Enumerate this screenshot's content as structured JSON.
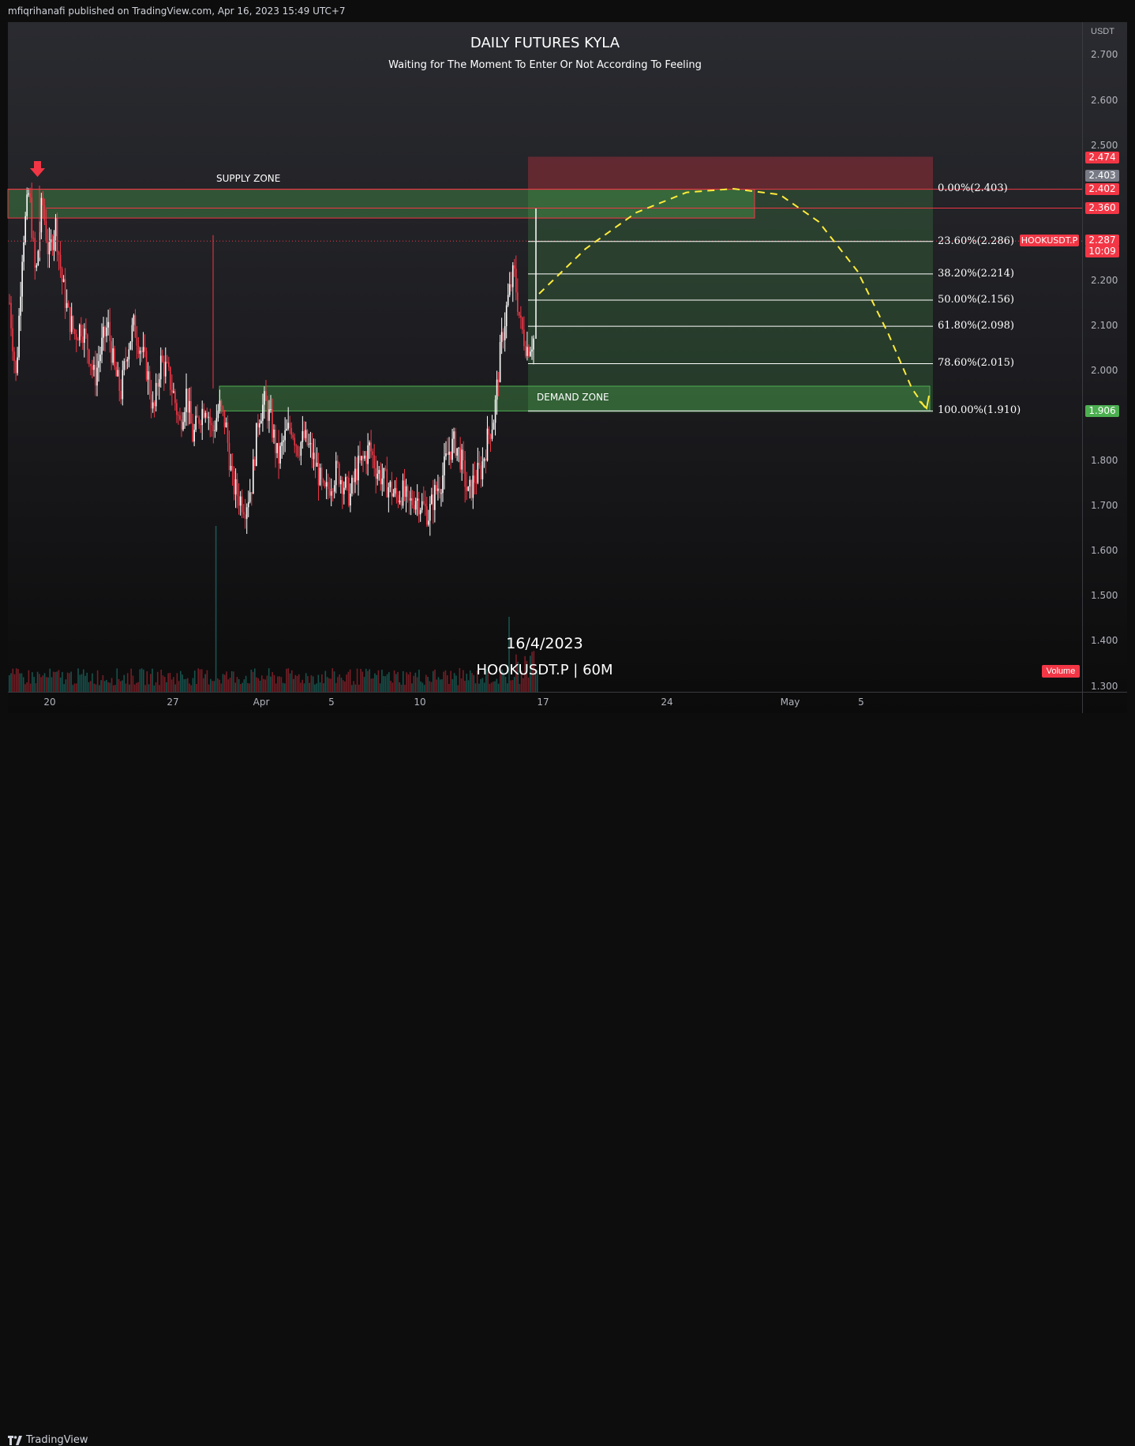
{
  "header": {
    "published": "mfiqrihanafi published on TradingView.com, Apr 16, 2023 15:49 UTC+7"
  },
  "footer": {
    "brand": "TradingView"
  },
  "chart": {
    "title": "DAILY FUTURES KYLA",
    "subtitle": "Waiting for The Moment To Enter Or Not According To Feeling",
    "watermark_date": "16/4/2023",
    "watermark_symbol": "HOOKUSDT.P | 60M",
    "supply_label": "SUPPLY ZONE",
    "demand_label": "DEMAND ZONE",
    "currency": "USDT",
    "symbol_tag": "HOOKUSDT.P",
    "volume_tag": "Volume",
    "countdown": "10:09",
    "colors": {
      "bull": "#ffffff",
      "bear": "#f23645",
      "zone_green": "#4caf50",
      "zone_red": "#f23645",
      "forecast": "#ffeb3b"
    }
  },
  "chart_data": {
    "type": "candlestick",
    "symbol": "HOOKUSDT.P",
    "interval": "60M",
    "y_range": [
      1.28,
      2.74
    ],
    "y_ticks": [
      {
        "v": 2.7,
        "label": "2.700"
      },
      {
        "v": 2.6,
        "label": "2.600"
      },
      {
        "v": 2.5,
        "label": "2.500"
      },
      {
        "v": 2.2,
        "label": "2.200"
      },
      {
        "v": 2.1,
        "label": "2.100"
      },
      {
        "v": 2.0,
        "label": "2.000"
      },
      {
        "v": 1.8,
        "label": "1.800"
      },
      {
        "v": 1.7,
        "label": "1.700"
      },
      {
        "v": 1.6,
        "label": "1.600"
      },
      {
        "v": 1.5,
        "label": "1.500"
      },
      {
        "v": 1.4,
        "label": "1.400"
      },
      {
        "v": 1.3,
        "label": "1.300"
      }
    ],
    "x_ticks": [
      "20",
      "27",
      "Apr",
      "5",
      "10",
      "17",
      "24",
      "May",
      "5"
    ],
    "price_tags": [
      {
        "v": 2.474,
        "label": "2.474",
        "color": "#f23645"
      },
      {
        "v": 2.403,
        "label": "2.403",
        "color": "#787b86"
      },
      {
        "v": 2.402,
        "label": "2.402",
        "color": "#f23645"
      },
      {
        "v": 2.36,
        "label": "2.360",
        "color": "#f23645"
      },
      {
        "v": 2.287,
        "label": "2.287",
        "color": "#f23645"
      },
      {
        "v": 1.906,
        "label": "1.906",
        "color": "#4caf50"
      }
    ],
    "fib_levels": [
      {
        "v": 2.403,
        "label": "0.00%(2.403)"
      },
      {
        "v": 2.286,
        "label": "23.60%(2.286)"
      },
      {
        "v": 2.214,
        "label": "38.20%(2.214)"
      },
      {
        "v": 2.156,
        "label": "50.00%(2.156)"
      },
      {
        "v": 2.098,
        "label": "61.80%(2.098)"
      },
      {
        "v": 2.015,
        "label": "78.60%(2.015)"
      },
      {
        "v": 1.91,
        "label": "100.00%(1.910)"
      }
    ],
    "supply_zone": [
      2.338,
      2.402
    ],
    "demand_zone": [
      1.91,
      1.965
    ],
    "price_path": [
      [
        0,
        2.15
      ],
      [
        1,
        1.98
      ],
      [
        2,
        2.28
      ],
      [
        3,
        2.4
      ],
      [
        4,
        2.2
      ],
      [
        5,
        2.38
      ],
      [
        6,
        2.25
      ],
      [
        7,
        2.33
      ],
      [
        8,
        2.2
      ],
      [
        9,
        2.12
      ],
      [
        10,
        2.08
      ],
      [
        11,
        2.1
      ],
      [
        12,
        2.05
      ],
      [
        13,
        1.98
      ],
      [
        14,
        2.05
      ],
      [
        15,
        2.1
      ],
      [
        16,
        2.0
      ],
      [
        17,
        1.95
      ],
      [
        18,
        2.05
      ],
      [
        19,
        2.1
      ],
      [
        20,
        2.05
      ],
      [
        21,
        2.0
      ],
      [
        22,
        1.9
      ],
      [
        23,
        2.02
      ],
      [
        24,
        2.0
      ],
      [
        25,
        1.95
      ],
      [
        26,
        1.88
      ],
      [
        27,
        1.95
      ],
      [
        28,
        1.85
      ],
      [
        29,
        1.9
      ],
      [
        30,
        1.93
      ],
      [
        31,
        1.86
      ],
      [
        32,
        1.92
      ],
      [
        33,
        1.88
      ],
      [
        34,
        1.75
      ],
      [
        35,
        1.72
      ],
      [
        36,
        1.7
      ],
      [
        37,
        1.75
      ],
      [
        38,
        1.9
      ],
      [
        39,
        1.93
      ],
      [
        40,
        1.88
      ],
      [
        41,
        1.8
      ],
      [
        42,
        1.85
      ],
      [
        43,
        1.88
      ],
      [
        44,
        1.83
      ],
      [
        45,
        1.85
      ],
      [
        46,
        1.82
      ],
      [
        47,
        1.78
      ],
      [
        48,
        1.72
      ],
      [
        49,
        1.75
      ],
      [
        50,
        1.78
      ],
      [
        51,
        1.75
      ],
      [
        52,
        1.72
      ],
      [
        53,
        1.78
      ],
      [
        54,
        1.8
      ],
      [
        55,
        1.83
      ],
      [
        56,
        1.78
      ],
      [
        57,
        1.76
      ],
      [
        58,
        1.74
      ],
      [
        59,
        1.72
      ],
      [
        60,
        1.73
      ],
      [
        61,
        1.7
      ],
      [
        62,
        1.72
      ],
      [
        63,
        1.7
      ],
      [
        64,
        1.68
      ],
      [
        65,
        1.73
      ],
      [
        66,
        1.76
      ],
      [
        67,
        1.82
      ],
      [
        68,
        1.84
      ],
      [
        69,
        1.8
      ],
      [
        70,
        1.72
      ],
      [
        71,
        1.76
      ],
      [
        72,
        1.78
      ],
      [
        73,
        1.85
      ],
      [
        74,
        1.9
      ],
      [
        75,
        2.05
      ],
      [
        76,
        2.15
      ],
      [
        77,
        2.22
      ],
      [
        78,
        2.1
      ],
      [
        79,
        2.05
      ],
      [
        80,
        2.07
      ]
    ],
    "forecast_path": [
      [
        0,
        2.17
      ],
      [
        0.12,
        2.27
      ],
      [
        0.25,
        2.35
      ],
      [
        0.38,
        2.395
      ],
      [
        0.5,
        2.403
      ],
      [
        0.62,
        2.39
      ],
      [
        0.72,
        2.33
      ],
      [
        0.82,
        2.22
      ],
      [
        0.9,
        2.08
      ],
      [
        0.96,
        1.96
      ],
      [
        1,
        1.91
      ]
    ]
  }
}
